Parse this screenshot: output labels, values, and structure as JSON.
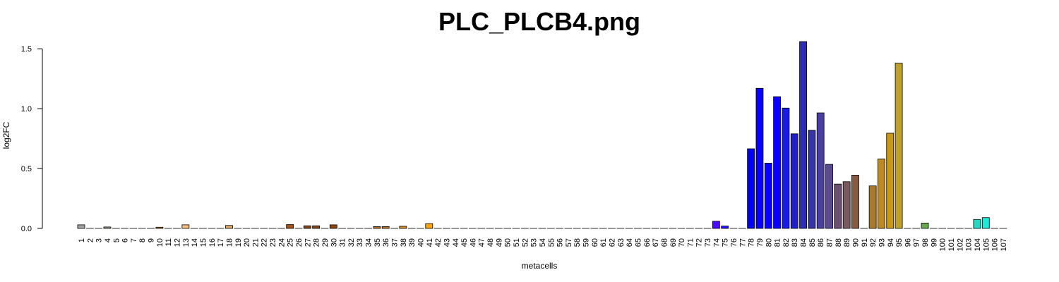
{
  "chart_data": {
    "type": "bar",
    "title": "PLC_PLCB4.png",
    "xlabel": "metacells",
    "ylabel": "log2FC",
    "ylim": [
      0,
      1.56
    ],
    "yticks": [
      "0.0",
      "0.5",
      "1.0",
      "1.5"
    ],
    "ytick_values": [
      0,
      0.5,
      1.0,
      1.5
    ],
    "categories": [
      "1",
      "2",
      "3",
      "4",
      "5",
      "6",
      "7",
      "8",
      "9",
      "10",
      "11",
      "12",
      "13",
      "14",
      "15",
      "16",
      "17",
      "18",
      "19",
      "20",
      "21",
      "22",
      "23",
      "24",
      "25",
      "26",
      "27",
      "28",
      "29",
      "30",
      "31",
      "32",
      "33",
      "34",
      "35",
      "36",
      "37",
      "38",
      "39",
      "40",
      "41",
      "42",
      "43",
      "44",
      "45",
      "46",
      "47",
      "48",
      "49",
      "50",
      "51",
      "52",
      "53",
      "54",
      "55",
      "56",
      "57",
      "58",
      "59",
      "60",
      "61",
      "62",
      "63",
      "64",
      "65",
      "66",
      "67",
      "68",
      "69",
      "70",
      "71",
      "72",
      "73",
      "74",
      "75",
      "76",
      "77",
      "78",
      "79",
      "80",
      "81",
      "82",
      "83",
      "84",
      "85",
      "86",
      "87",
      "88",
      "89",
      "90",
      "91",
      "92",
      "93",
      "94",
      "95",
      "96",
      "97",
      "98",
      "99",
      "100",
      "101",
      "102",
      "103",
      "104",
      "105",
      "106",
      "107"
    ],
    "values": [
      0.03,
      0,
      0,
      0.012,
      0,
      0,
      0,
      0,
      0,
      0.01,
      0,
      0,
      0.03,
      0,
      0,
      0,
      0,
      0.025,
      0,
      0,
      0,
      0,
      0,
      0,
      0.032,
      0,
      0.022,
      0.022,
      0,
      0.03,
      0,
      0,
      0,
      0,
      0.015,
      0.015,
      0,
      0.018,
      0,
      0,
      0.04,
      0,
      0,
      0,
      0,
      0,
      0,
      0,
      0,
      0,
      0,
      0,
      0,
      0,
      0,
      0,
      0,
      0,
      0,
      0,
      0,
      0,
      0,
      0,
      0,
      0,
      0,
      0,
      0,
      0,
      0,
      0,
      0,
      0.06,
      0.02,
      0,
      0,
      0.665,
      1.17,
      0.545,
      1.1,
      1.005,
      0.79,
      1.56,
      0.82,
      0.965,
      0.535,
      0.37,
      0.39,
      0.445,
      0,
      0.355,
      0.58,
      0.795,
      1.38,
      0,
      0,
      0.045,
      0,
      0,
      0,
      0,
      0,
      0.075,
      0.09,
      0,
      0
    ],
    "colors": [
      "#a3a3a3",
      "#bdbdbd",
      "#bdbdbd",
      "#a0a090",
      "#bdbdbd",
      "#bdbdbd",
      "#bdbdbd",
      "#bdbdbd",
      "#bdbdbd",
      "#b8823a",
      "#bdbdbd",
      "#bdbdbd",
      "#f9bf7f",
      "#bdbdbd",
      "#bdbdbd",
      "#bdbdbd",
      "#bdbdbd",
      "#d9a86a",
      "#bdbdbd",
      "#bdbdbd",
      "#bdbdbd",
      "#bdbdbd",
      "#bdbdbd",
      "#bdbdbd",
      "#a0521c",
      "#bdbdbd",
      "#8b4513",
      "#8b4513",
      "#bdbdbd",
      "#8b4513",
      "#bdbdbd",
      "#bdbdbd",
      "#bdbdbd",
      "#bdbdbd",
      "#c0731f",
      "#c0731f",
      "#bdbdbd",
      "#d98c2b",
      "#bdbdbd",
      "#bdbdbd",
      "#ffa500",
      "#bdbdbd",
      "#bdbdbd",
      "#bdbdbd",
      "#bdbdbd",
      "#bdbdbd",
      "#bdbdbd",
      "#bdbdbd",
      "#bdbdbd",
      "#bdbdbd",
      "#bdbdbd",
      "#bdbdbd",
      "#bdbdbd",
      "#bdbdbd",
      "#bdbdbd",
      "#bdbdbd",
      "#bdbdbd",
      "#bdbdbd",
      "#bdbdbd",
      "#bdbdbd",
      "#bdbdbd",
      "#bdbdbd",
      "#bdbdbd",
      "#bdbdbd",
      "#bdbdbd",
      "#bdbdbd",
      "#bdbdbd",
      "#bdbdbd",
      "#bdbdbd",
      "#bdbdbd",
      "#bdbdbd",
      "#bdbdbd",
      "#bdbdbd",
      "#4b0bff",
      "#2a10ff",
      "#bdbdbd",
      "#bdbdbd",
      "#0000ff",
      "#0a00ff",
      "#0a00ff",
      "#0b00ff",
      "#1a1ae6",
      "#2020cc",
      "#2d2dbb",
      "#3535a8",
      "#4a3fa0",
      "#5a4a90",
      "#6b5070",
      "#7a5a60",
      "#8a5a40",
      "#bdbdbd",
      "#a87a30",
      "#bb8a25",
      "#c89818",
      "#bfa12a",
      "#bdbdbd",
      "#bdbdbd",
      "#6aa84f",
      "#bdbdbd",
      "#bdbdbd",
      "#bdbdbd",
      "#bdbdbd",
      "#bdbdbd",
      "#22d8c0",
      "#22e8d8",
      "#bdbdbd",
      "#bdbdbd"
    ]
  }
}
